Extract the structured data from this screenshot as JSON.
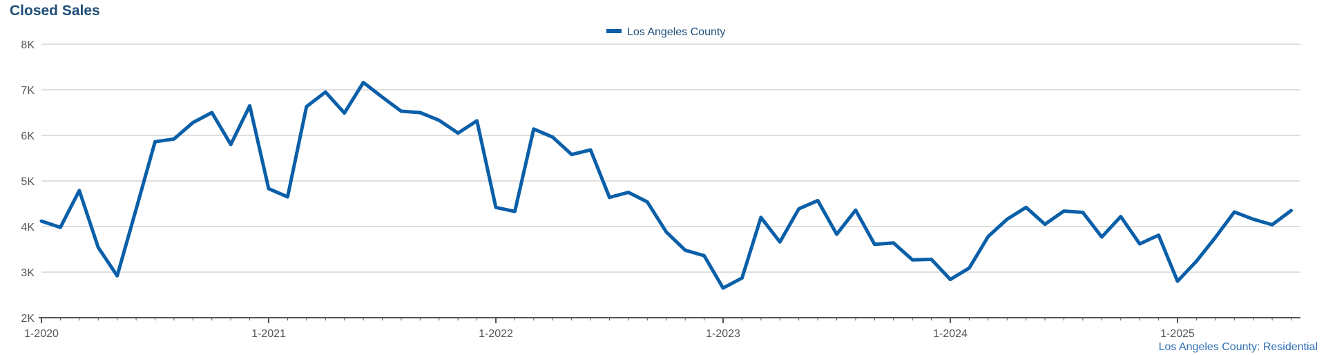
{
  "title": "Closed Sales",
  "footnote": "Los Angeles County: Residential",
  "colors": {
    "series": "#0a5fa8",
    "grid": "#bfbfbf",
    "axis": "#555555",
    "title": "#1f4e79"
  },
  "chart_data": {
    "type": "line",
    "title": "Closed Sales",
    "xlabel": "",
    "ylabel": "",
    "ylim": [
      2000,
      8000
    ],
    "yticks": [
      2000,
      3000,
      4000,
      5000,
      6000,
      7000,
      8000
    ],
    "ytick_labels": [
      "2K",
      "3K",
      "4K",
      "5K",
      "6K",
      "7K",
      "8K"
    ],
    "xtick_labels": [
      "1-2020",
      "1-2021",
      "1-2022",
      "1-2023",
      "1-2024",
      "1-2025"
    ],
    "grid": true,
    "legend_position": "top-center",
    "x_start": "2020-01",
    "x_end": "2025-07",
    "series": [
      {
        "name": "Los Angeles County",
        "values": [
          4120,
          3980,
          4790,
          3540,
          2920,
          4380,
          5860,
          5920,
          6280,
          6500,
          5800,
          6650,
          4830,
          4650,
          6630,
          6950,
          6490,
          7160,
          6840,
          6530,
          6500,
          6330,
          6050,
          6320,
          4420,
          4330,
          6140,
          5960,
          5580,
          5680,
          4640,
          4750,
          4540,
          3880,
          3480,
          3360,
          2650,
          2870,
          4200,
          3660,
          4390,
          4570,
          3830,
          4360,
          3610,
          3640,
          3270,
          3280,
          2840,
          3090,
          3780,
          4160,
          4420,
          4050,
          4340,
          4310,
          3770,
          4220,
          3620,
          3810,
          2800,
          3240,
          3760,
          4320,
          4160,
          4040,
          4350
        ]
      }
    ]
  }
}
